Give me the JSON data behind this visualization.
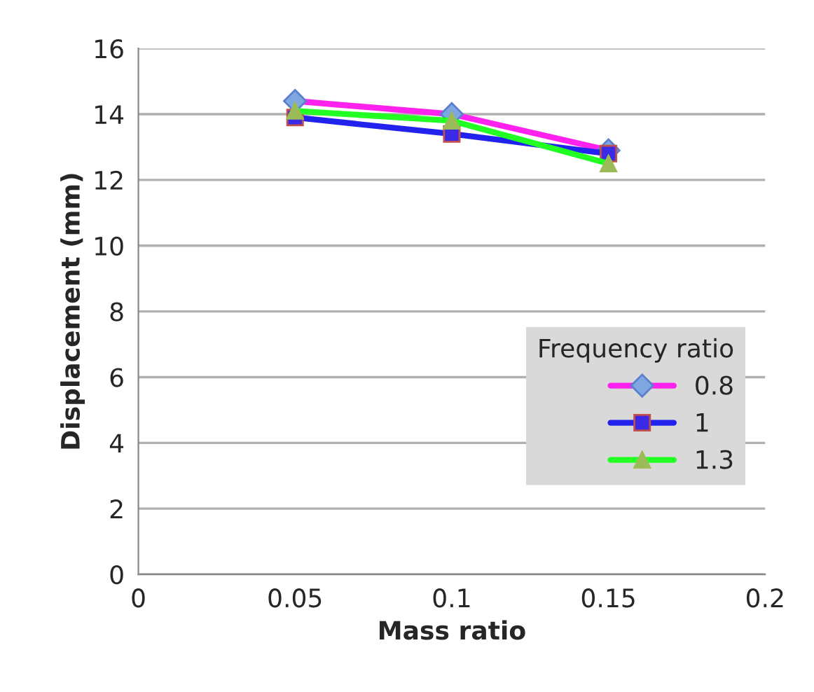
{
  "chart_data": {
    "type": "line",
    "xlabel": "Mass ratio",
    "ylabel": "Displacement (mm)",
    "legend_title": "Frequency ratio",
    "x": [
      0.05,
      0.1,
      0.15
    ],
    "series": [
      {
        "name": "0.8",
        "color": "#ff22ee",
        "marker": "diamond",
        "values": [
          14.4,
          14.0,
          12.9
        ]
      },
      {
        "name": "1",
        "color": "#2222ee",
        "marker": "square",
        "values": [
          13.9,
          13.4,
          12.8
        ]
      },
      {
        "name": "1.3",
        "color": "#22ff22",
        "marker": "triangle",
        "values": [
          14.1,
          13.8,
          12.5
        ]
      }
    ],
    "xlim": [
      0,
      0.2
    ],
    "xticks": [
      0,
      0.05,
      0.1,
      0.15,
      0.2
    ],
    "ylim": [
      0,
      16
    ],
    "yticks": [
      0,
      2,
      4,
      6,
      8,
      10,
      12,
      14,
      16
    ],
    "grid": "y",
    "legend": "right",
    "line_style": "solid"
  }
}
